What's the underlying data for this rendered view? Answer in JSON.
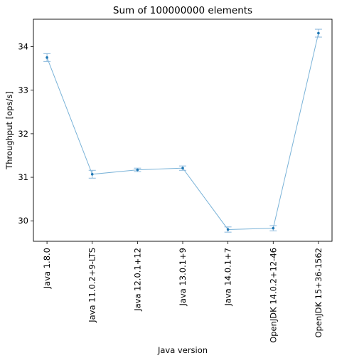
{
  "chart_data": {
    "type": "line",
    "title": "Sum of 100000000 elements",
    "xlabel": "Java version",
    "ylabel": "Throughput [ops/s]",
    "categories": [
      "Java 1.8.0",
      "Java 11.0.2+9-LTS",
      "Java 12.0.1+12",
      "Java 13.0.1+9",
      "Java 14.0.1+7",
      "OpenJDK 14.0.2+12-46",
      "OpenJDK 15+36-1562"
    ],
    "series": [
      {
        "values": [
          33.75,
          31.07,
          31.17,
          31.21,
          29.8,
          29.83,
          34.31
        ],
        "errors": [
          0.09,
          0.09,
          0.04,
          0.05,
          0.06,
          0.06,
          0.09
        ]
      }
    ],
    "ylim": [
      29.53,
      34.63
    ],
    "yticks": [
      30,
      31,
      32,
      33,
      34
    ],
    "grid": false,
    "legend": "none",
    "line_color": "#7ab3d8",
    "marker_color": "#1f77b4",
    "errorbar_color": "#8ab8dc"
  }
}
